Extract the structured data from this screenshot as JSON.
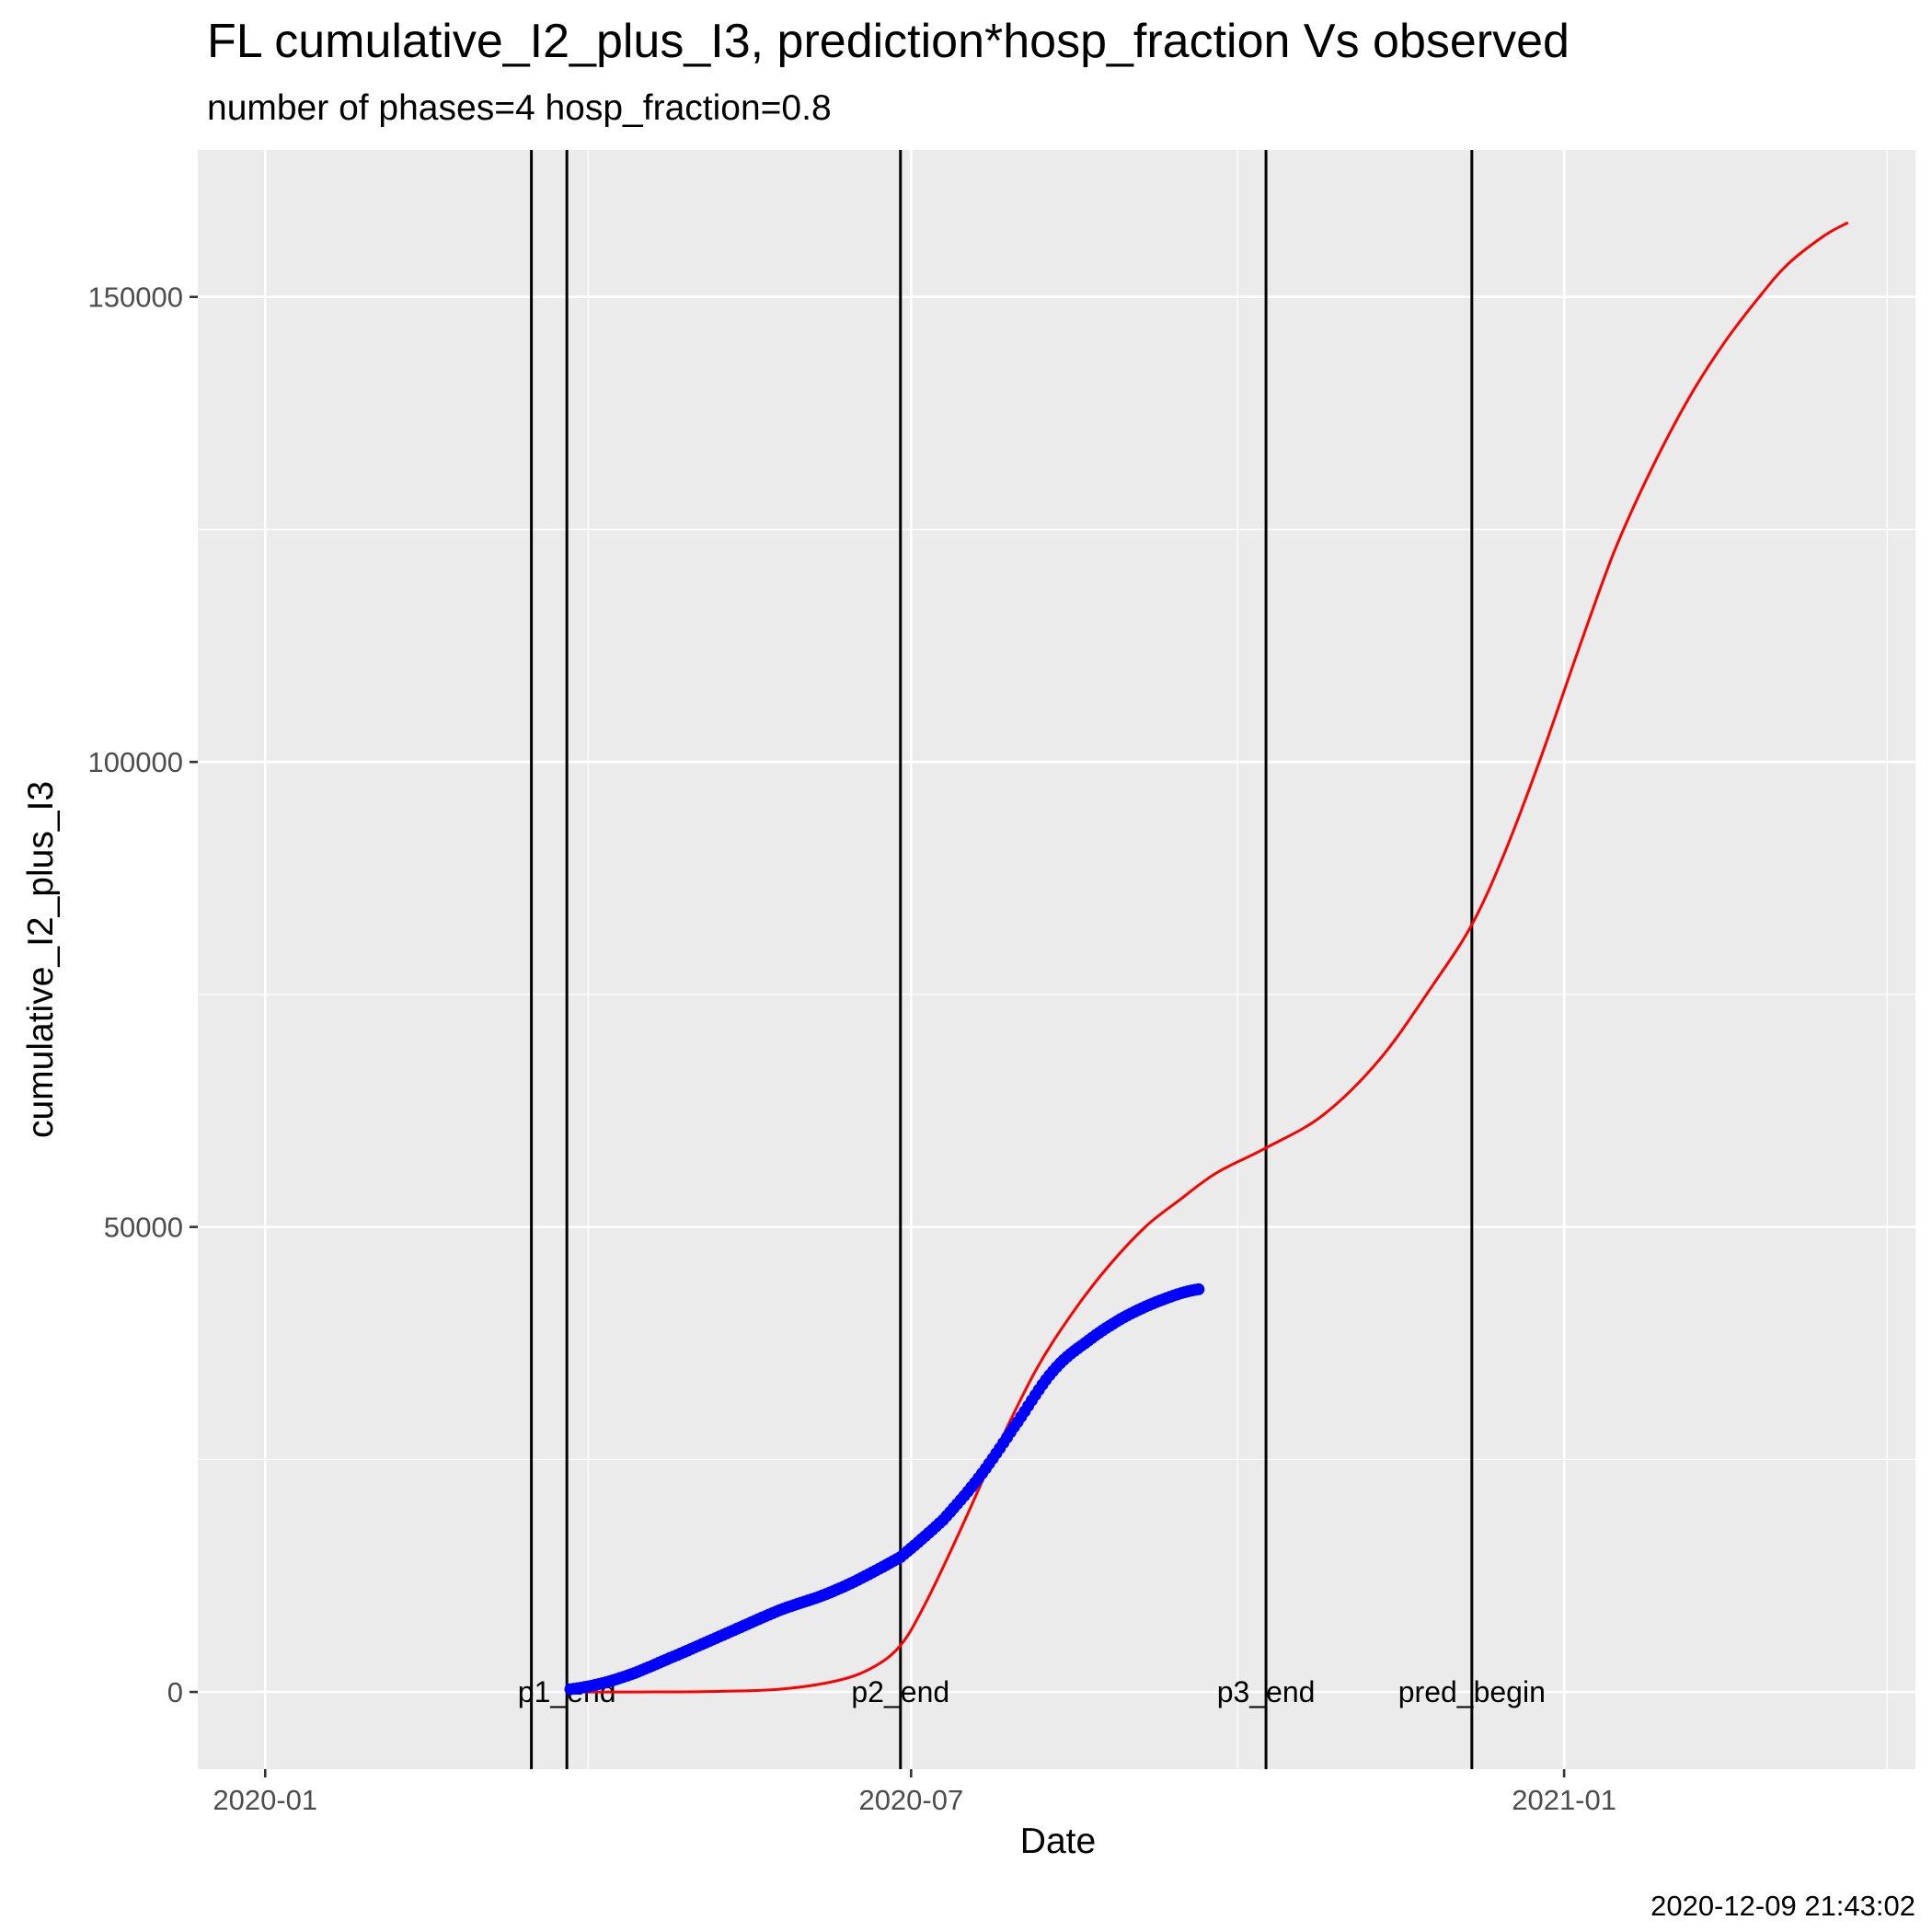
{
  "chart_data": {
    "type": "line",
    "title": "FL cumulative_I2_plus_I3,  prediction*hosp_fraction Vs observed",
    "subtitle": "number of phases=4   hosp_fraction=0.8",
    "xlabel": "Date",
    "ylabel": "cumulative_I2_plus_I3",
    "caption": "2020-12-09 21:43:02",
    "x_ticks": [
      "2020-01",
      "2020-07",
      "2021-01"
    ],
    "y_ticks": [
      0,
      50000,
      100000,
      150000
    ],
    "xlim": [
      "2019-12-13",
      "2021-04-10"
    ],
    "ylim": [
      -8300,
      165800
    ],
    "grid": true,
    "colors": {
      "prediction": "#FF0000",
      "observed": "#0000FF",
      "phase_lines": "#000000",
      "panel": "#EBEBEB"
    },
    "phase_lines": [
      {
        "date": "2020-03-16",
        "label": ""
      },
      {
        "date": "2020-03-26",
        "label": "p1_end"
      },
      {
        "date": "2020-06-28",
        "label": "p2_end"
      },
      {
        "date": "2020-10-09",
        "label": "p3_end"
      },
      {
        "date": "2020-12-06",
        "label": "pred_begin"
      }
    ],
    "series": [
      {
        "name": "",
        "style": "line",
        "x": [
          "2020-03-26",
          "2020-04-15",
          "2020-05-05",
          "2020-05-25",
          "2020-06-10",
          "2020-06-20",
          "2020-06-28",
          "2020-07-05",
          "2020-07-15",
          "2020-07-25",
          "2020-08-05",
          "2020-08-15",
          "2020-08-25",
          "2020-09-05",
          "2020-09-15",
          "2020-09-25",
          "2020-10-09",
          "2020-10-25",
          "2020-11-10",
          "2020-11-25",
          "2020-12-06",
          "2020-12-15",
          "2020-12-25",
          "2021-01-05",
          "2021-01-15",
          "2021-01-25",
          "2021-02-05",
          "2021-02-15",
          "2021-02-25",
          "2021-03-05",
          "2021-03-15",
          "2021-03-22"
        ],
        "values": [
          0,
          0,
          50,
          300,
          1200,
          2600,
          5000,
          9500,
          17500,
          26000,
          34500,
          40500,
          45500,
          50000,
          53000,
          55800,
          58500,
          62000,
          68000,
          76000,
          82500,
          90000,
          100000,
          112000,
          122500,
          131000,
          139000,
          145000,
          150000,
          153500,
          156500,
          158000
        ]
      },
      {
        "name": "",
        "style": "points",
        "x": [
          "2020-03-27",
          "2020-04-10",
          "2020-04-25",
          "2020-05-10",
          "2020-05-25",
          "2020-06-10",
          "2020-06-28",
          "2020-07-10",
          "2020-07-20",
          "2020-07-30",
          "2020-08-10",
          "2020-08-20",
          "2020-08-30",
          "2020-09-10",
          "2020-09-20"
        ],
        "values": [
          300,
          1500,
          3800,
          6300,
          8800,
          11000,
          14500,
          18500,
          23000,
          28500,
          34500,
          37800,
          40300,
          42200,
          43300
        ]
      }
    ]
  }
}
